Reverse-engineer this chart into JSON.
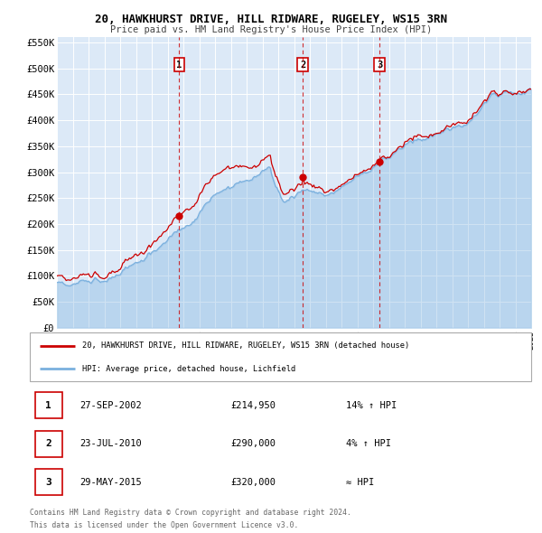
{
  "title": "20, HAWKHURST DRIVE, HILL RIDWARE, RUGELEY, WS15 3RN",
  "subtitle": "Price paid vs. HM Land Registry's House Price Index (HPI)",
  "background_color": "#ffffff",
  "plot_bg_color": "#dce9f7",
  "grid_color": "#ffffff",
  "ylim": [
    0,
    560000
  ],
  "yticks": [
    0,
    50000,
    100000,
    150000,
    200000,
    250000,
    300000,
    350000,
    400000,
    450000,
    500000,
    550000
  ],
  "ytick_labels": [
    "£0",
    "£50K",
    "£100K",
    "£150K",
    "£200K",
    "£250K",
    "£300K",
    "£350K",
    "£400K",
    "£450K",
    "£500K",
    "£550K"
  ],
  "sale_color": "#cc0000",
  "hpi_color": "#7ab0de",
  "sale_dates": [
    2002.74,
    2010.55,
    2015.41
  ],
  "sale_prices": [
    214950,
    290000,
    320000
  ],
  "sale_labels": [
    "1",
    "2",
    "3"
  ],
  "legend_sale_label": "20, HAWKHURST DRIVE, HILL RIDWARE, RUGELEY, WS15 3RN (detached house)",
  "legend_hpi_label": "HPI: Average price, detached house, Lichfield",
  "table_entries": [
    {
      "num": "1",
      "date": "27-SEP-2002",
      "price": "£214,950",
      "vs_hpi": "14% ↑ HPI"
    },
    {
      "num": "2",
      "date": "23-JUL-2010",
      "price": "£290,000",
      "vs_hpi": "4% ↑ HPI"
    },
    {
      "num": "3",
      "date": "29-MAY-2015",
      "price": "£320,000",
      "vs_hpi": "≈ HPI"
    }
  ],
  "footer_line1": "Contains HM Land Registry data © Crown copyright and database right 2024.",
  "footer_line2": "This data is licensed under the Open Government Licence v3.0."
}
